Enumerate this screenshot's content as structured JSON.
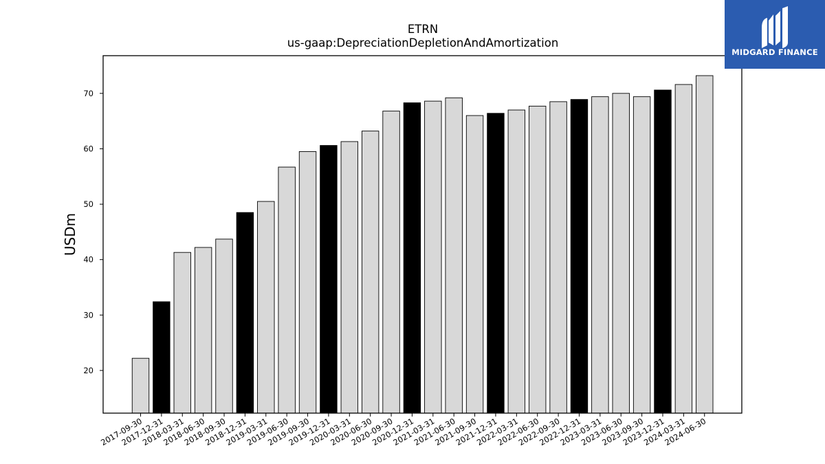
{
  "chart_data": {
    "type": "bar",
    "title": "ETRN",
    "subtitle": "us-gaap:DepreciationDepletionAndAmortization",
    "xlabel": "",
    "ylabel": "USDm",
    "ylim": [
      12.3,
      76.8
    ],
    "yticks": [
      20,
      30,
      40,
      50,
      60,
      70
    ],
    "grid": false,
    "categories": [
      "2017-09-30",
      "2017-12-31",
      "2018-03-31",
      "2018-06-30",
      "2018-09-30",
      "2018-12-31",
      "2019-03-31",
      "2019-06-30",
      "2019-09-30",
      "2019-12-31",
      "2020-03-31",
      "2020-06-30",
      "2020-09-30",
      "2020-12-31",
      "2021-03-31",
      "2021-06-30",
      "2021-09-30",
      "2021-12-31",
      "2022-03-31",
      "2022-06-30",
      "2022-09-30",
      "2022-12-31",
      "2023-03-31",
      "2023-06-30",
      "2023-09-30",
      "2023-12-31",
      "2024-03-31",
      "2024-06-30"
    ],
    "values": [
      22.2,
      32.4,
      41.3,
      42.2,
      43.7,
      48.5,
      50.5,
      56.7,
      59.5,
      60.6,
      61.3,
      63.2,
      66.8,
      68.3,
      68.6,
      69.2,
      66.0,
      66.4,
      67.0,
      67.7,
      68.5,
      68.9,
      69.4,
      70.0,
      69.4,
      70.6,
      71.6,
      73.2
    ],
    "highlight": [
      false,
      true,
      false,
      false,
      false,
      true,
      false,
      false,
      false,
      true,
      false,
      false,
      false,
      true,
      false,
      false,
      false,
      true,
      false,
      false,
      false,
      true,
      false,
      false,
      false,
      true,
      false,
      false
    ],
    "colors": {
      "bar": "#d8d8d8",
      "highlight": "#000000",
      "edge": "#000000"
    }
  },
  "logo": {
    "text": "MIDGARD FINANCE",
    "bg_color": "#2b5cb0"
  }
}
